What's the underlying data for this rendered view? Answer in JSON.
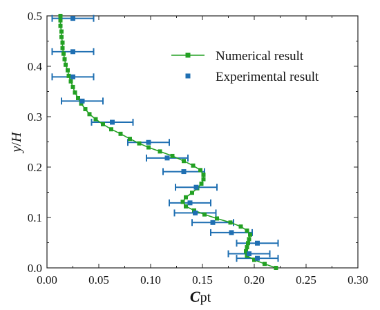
{
  "chart_data": {
    "type": "scatter",
    "xlabel_main": "C",
    "xlabel_sub": "pt",
    "ylabel_italic_1": "y",
    "ylabel_sep": "/",
    "ylabel_italic_2": "H",
    "xlim": [
      0.0,
      0.3
    ],
    "ylim": [
      0.0,
      0.5
    ],
    "x_ticks": [
      "0.00",
      "0.05",
      "0.10",
      "0.15",
      "0.20",
      "0.25",
      "0.30"
    ],
    "y_ticks": [
      "0.0",
      "0.1",
      "0.2",
      "0.3",
      "0.4",
      "0.5"
    ],
    "grid": false,
    "legend_position": "top-right",
    "colors": {
      "numerical": "#23a023",
      "experimental": "#1f6fb2"
    },
    "series": [
      {
        "name": "Numerical result",
        "style": "line-with-square-markers",
        "points": [
          [
            0.221,
            0.0
          ],
          [
            0.21,
            0.008
          ],
          [
            0.2,
            0.016
          ],
          [
            0.193,
            0.024
          ],
          [
            0.192,
            0.033
          ],
          [
            0.193,
            0.041
          ],
          [
            0.194,
            0.049
          ],
          [
            0.195,
            0.057
          ],
          [
            0.196,
            0.066
          ],
          [
            0.193,
            0.074
          ],
          [
            0.187,
            0.082
          ],
          [
            0.177,
            0.09
          ],
          [
            0.164,
            0.098
          ],
          [
            0.152,
            0.106
          ],
          [
            0.142,
            0.114
          ],
          [
            0.134,
            0.122
          ],
          [
            0.131,
            0.131
          ],
          [
            0.134,
            0.14
          ],
          [
            0.14,
            0.149
          ],
          [
            0.145,
            0.158
          ],
          [
            0.149,
            0.167
          ],
          [
            0.151,
            0.176
          ],
          [
            0.151,
            0.185
          ],
          [
            0.148,
            0.194
          ],
          [
            0.141,
            0.203
          ],
          [
            0.132,
            0.212
          ],
          [
            0.121,
            0.222
          ],
          [
            0.109,
            0.231
          ],
          [
            0.098,
            0.239
          ],
          [
            0.089,
            0.247
          ],
          [
            0.08,
            0.256
          ],
          [
            0.071,
            0.266
          ],
          [
            0.062,
            0.275
          ],
          [
            0.054,
            0.285
          ],
          [
            0.047,
            0.295
          ],
          [
            0.041,
            0.305
          ],
          [
            0.037,
            0.315
          ],
          [
            0.033,
            0.326
          ],
          [
            0.03,
            0.337
          ],
          [
            0.027,
            0.348
          ],
          [
            0.025,
            0.359
          ],
          [
            0.023,
            0.37
          ],
          [
            0.021,
            0.381
          ],
          [
            0.02,
            0.392
          ],
          [
            0.018,
            0.403
          ],
          [
            0.017,
            0.414
          ],
          [
            0.016,
            0.425
          ],
          [
            0.015,
            0.436
          ],
          [
            0.015,
            0.447
          ],
          [
            0.014,
            0.458
          ],
          [
            0.014,
            0.469
          ],
          [
            0.013,
            0.48
          ],
          [
            0.013,
            0.491
          ],
          [
            0.013,
            0.5
          ]
        ]
      },
      {
        "name": "Experimental result",
        "style": "square-markers-with-x-error-bars",
        "points": [
          {
            "x": 0.025,
            "y": 0.495,
            "xerr": 0.02
          },
          {
            "x": 0.025,
            "y": 0.429,
            "xerr": 0.02
          },
          {
            "x": 0.025,
            "y": 0.379,
            "xerr": 0.02
          },
          {
            "x": 0.034,
            "y": 0.331,
            "xerr": 0.02
          },
          {
            "x": 0.063,
            "y": 0.289,
            "xerr": 0.02
          },
          {
            "x": 0.098,
            "y": 0.249,
            "xerr": 0.02
          },
          {
            "x": 0.116,
            "y": 0.218,
            "xerr": 0.02
          },
          {
            "x": 0.132,
            "y": 0.191,
            "xerr": 0.02
          },
          {
            "x": 0.144,
            "y": 0.16,
            "xerr": 0.02
          },
          {
            "x": 0.138,
            "y": 0.129,
            "xerr": 0.02
          },
          {
            "x": 0.143,
            "y": 0.109,
            "xerr": 0.02
          },
          {
            "x": 0.16,
            "y": 0.09,
            "xerr": 0.02
          },
          {
            "x": 0.178,
            "y": 0.07,
            "xerr": 0.02
          },
          {
            "x": 0.203,
            "y": 0.049,
            "xerr": 0.02
          },
          {
            "x": 0.203,
            "y": 0.019,
            "xerr": 0.02
          },
          {
            "x": 0.195,
            "y": 0.028,
            "xerr": 0.02
          }
        ]
      }
    ]
  }
}
